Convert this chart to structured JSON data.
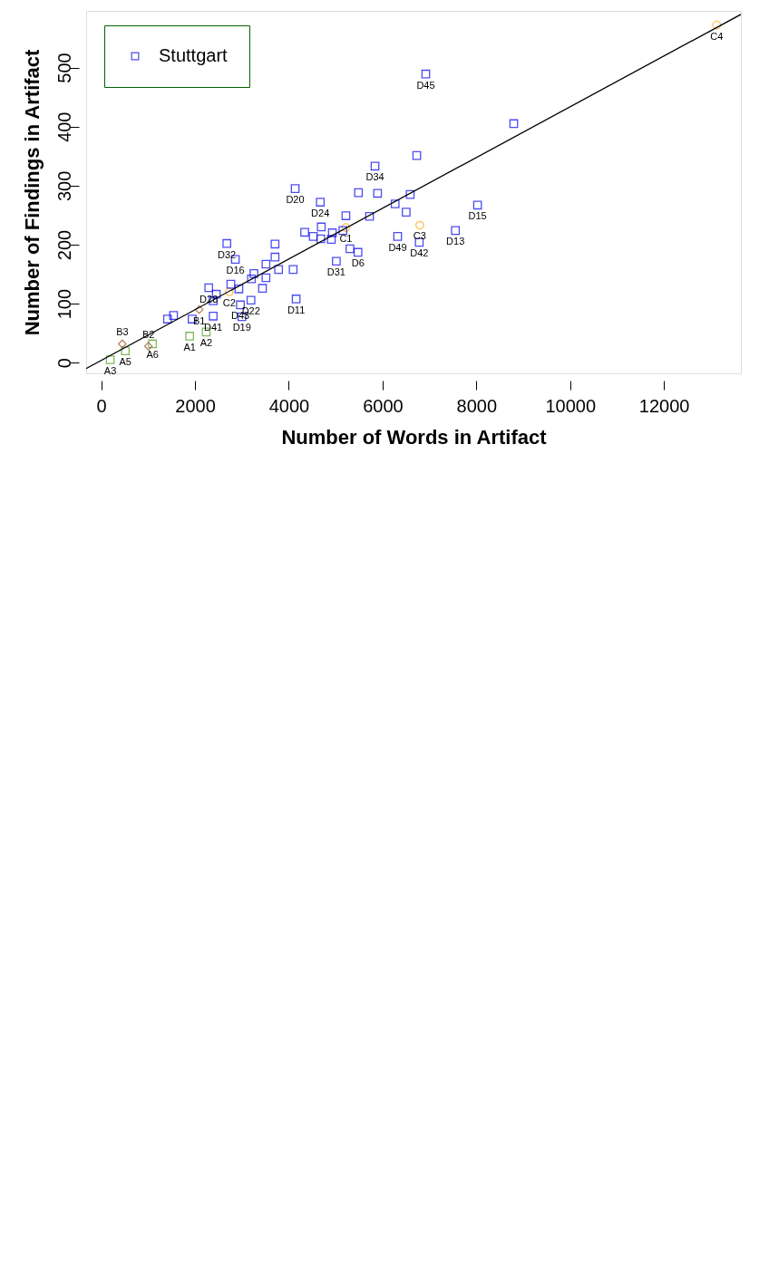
{
  "chart_data": {
    "type": "scatter",
    "xlabel": "Number of Words in Artifact",
    "ylabel": "Number of Findings in Artifact",
    "xlim": [
      -321,
      13640
    ],
    "ylim": [
      -18,
      596
    ],
    "xticks": [
      0,
      2000,
      4000,
      6000,
      8000,
      10000,
      12000
    ],
    "yticks": [
      0,
      100,
      200,
      300,
      400,
      500
    ],
    "grid": false,
    "legend": "top left",
    "series": [
      {
        "color": "#4c9a1c",
        "marker": "square",
        "x": [
          1886,
          2239,
          193,
          514,
          1093
        ],
        "values": [
          45,
          52,
          5,
          20,
          32
        ]
      },
      {
        "color": "#a0522d",
        "marker": "diamond",
        "x": [
          2089,
          1007,
          450
        ],
        "values": [
          90,
          28,
          32
        ]
      },
      {
        "color": "#ffa500",
        "marker": "circle",
        "x": [
          5218,
          2732,
          6793,
          13125
        ],
        "values": [
          229,
          120,
          233,
          572
        ]
      },
      {
        "name": "Stuttgart",
        "color": "#0000ee",
        "marker": "square",
        "x": [
          8797,
          8025,
          7553,
          6921,
          6729,
          6782,
          6589,
          6503,
          6321,
          6268,
          5839,
          5893,
          5722,
          5486,
          5475,
          5304,
          5218,
          5154,
          5014,
          4929,
          4907,
          4672,
          4693,
          4682,
          4522,
          4339,
          4136,
          4157,
          4093,
          3782,
          3707,
          3707,
          3514,
          3514,
          3439,
          3257,
          3204,
          3193,
          2968,
          3000,
          2936,
          2861,
          2764,
          2679,
          2454,
          2389,
          2389,
          2293,
          1939,
          1543,
          1414
        ],
        "values": [
          405,
          267,
          224,
          489,
          351,
          204,
          285,
          255,
          214,
          269,
          333,
          287,
          248,
          288,
          187,
          193,
          249,
          224,
          172,
          220,
          209,
          272,
          230,
          210,
          214,
          221,
          295,
          108,
          158,
          158,
          201,
          179,
          167,
          144,
          126,
          151,
          142,
          106,
          98,
          78,
          125,
          175,
          133,
          202,
          116,
          105,
          79,
          127,
          74,
          80,
          74
        ]
      },
      {
        "type": "line",
        "color": "#000000",
        "x": [
          -321,
          13640
        ],
        "values": [
          -10,
          590
        ]
      }
    ],
    "annotations": [
      {
        "text": "A1",
        "x": 1886,
        "y": 45
      },
      {
        "text": "A2",
        "x": 2239,
        "y": 52
      },
      {
        "text": "A3",
        "x": 193,
        "y": 5
      },
      {
        "text": "A5",
        "x": 514,
        "y": 20
      },
      {
        "text": "A6",
        "x": 1093,
        "y": 32
      },
      {
        "text": "B1",
        "x": 2089,
        "y": 90
      },
      {
        "text": "B2",
        "x": 1007,
        "y": 28
      },
      {
        "text": "B3",
        "x": 450,
        "y": 32
      },
      {
        "text": "C1",
        "x": 5218,
        "y": 229
      },
      {
        "text": "C2",
        "x": 2732,
        "y": 120
      },
      {
        "text": "C3",
        "x": 6793,
        "y": 233
      },
      {
        "text": "C4",
        "x": 13125,
        "y": 572
      },
      {
        "text": "D15",
        "x": 8025,
        "y": 267
      },
      {
        "text": "D13",
        "x": 7553,
        "y": 224
      },
      {
        "text": "D45",
        "x": 6921,
        "y": 489
      },
      {
        "text": "D42",
        "x": 6782,
        "y": 204
      },
      {
        "text": "D49",
        "x": 6321,
        "y": 214
      },
      {
        "text": "D34",
        "x": 5839,
        "y": 333
      },
      {
        "text": "D6",
        "x": 5475,
        "y": 187
      },
      {
        "text": "D31",
        "x": 5014,
        "y": 172
      },
      {
        "text": "D24",
        "x": 4672,
        "y": 272
      },
      {
        "text": "D20",
        "x": 4136,
        "y": 295
      },
      {
        "text": "D11",
        "x": 4157,
        "y": 108
      },
      {
        "text": "D22",
        "x": 3193,
        "y": 106
      },
      {
        "text": "D43",
        "x": 2968,
        "y": 98
      },
      {
        "text": "D19",
        "x": 3000,
        "y": 78
      },
      {
        "text": "D16",
        "x": 2861,
        "y": 175
      },
      {
        "text": "D32",
        "x": 2679,
        "y": 202
      },
      {
        "text": "D41",
        "x": 2389,
        "y": 79
      },
      {
        "text": "D28",
        "x": 2293,
        "y": 127
      }
    ]
  }
}
